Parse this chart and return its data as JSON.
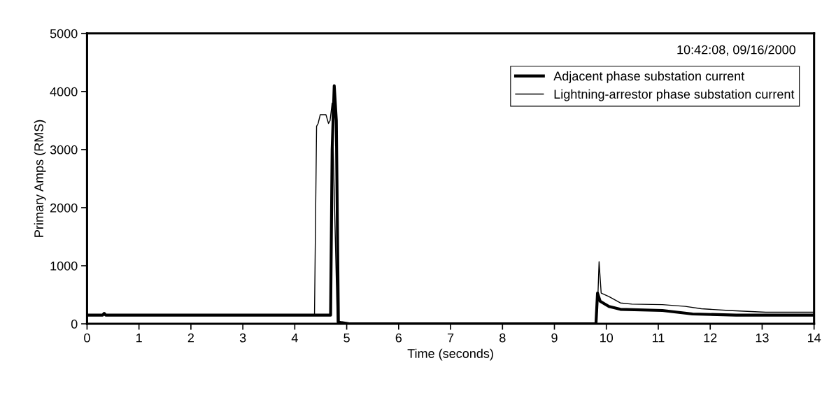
{
  "chart_data": {
    "type": "line",
    "xlabel": "Time (seconds)",
    "ylabel": "Primary Amps (RMS)",
    "annotations": [
      "10:42:08, 09/16/2000"
    ],
    "xlim": [
      0,
      14
    ],
    "xticks": [
      0,
      1,
      2,
      3,
      4,
      5,
      6,
      7,
      8,
      9,
      10,
      11,
      12,
      13,
      14
    ],
    "ylim": [
      0,
      5000
    ],
    "yticks": [
      0,
      1000,
      2000,
      3000,
      4000,
      5000
    ],
    "grid": false,
    "legend": "top right",
    "marker": "none",
    "line_style": "solid",
    "series": [
      {
        "name": "Adjacent phase substation current",
        "color": "#000000",
        "x": [
          0,
          0.3,
          0.33,
          0.36,
          4.69,
          4.72,
          4.76,
          4.8,
          4.84,
          4.9,
          5.05,
          9.8,
          9.83,
          9.88,
          10.05,
          10.27,
          11.08,
          11.66,
          12.5,
          14
        ],
        "values": [
          150,
          150,
          180,
          150,
          150,
          3000,
          4100,
          3500,
          30,
          20,
          0,
          0,
          530,
          390,
          300,
          250,
          230,
          170,
          150,
          150
        ]
      },
      {
        "name": "Lightning-arrestor phase substation current",
        "color": "#000000",
        "x": [
          0,
          4.38,
          4.42,
          4.45,
          4.49,
          4.6,
          4.65,
          4.68,
          4.72,
          4.78,
          4.82,
          9.8,
          9.83,
          9.86,
          9.9,
          10.05,
          10.27,
          10.49,
          11.08,
          11.52,
          11.83,
          12.36,
          13.07,
          14
        ],
        "values": [
          150,
          150,
          3400,
          3450,
          3600,
          3600,
          3450,
          3500,
          3800,
          1500,
          0,
          0,
          300,
          1070,
          530,
          470,
          360,
          340,
          330,
          300,
          260,
          230,
          200,
          200
        ]
      }
    ]
  }
}
